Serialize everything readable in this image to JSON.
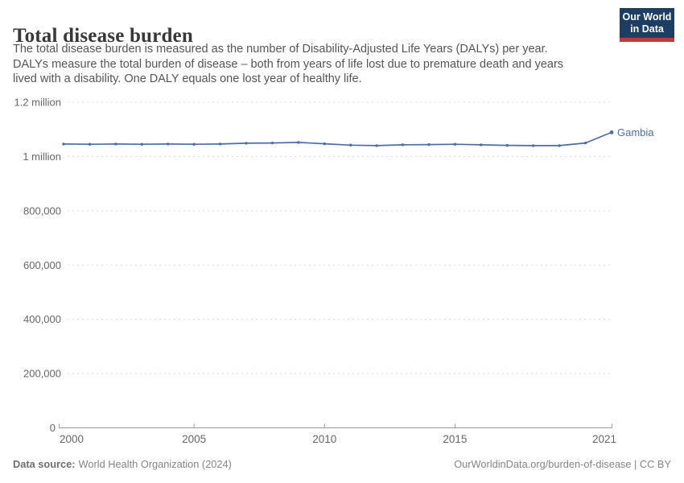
{
  "header": {
    "title": "Total disease burden",
    "subtitle_lines": [
      "The total disease burden is measured as the number of Disability-Adjusted Life Years (DALYs) per year.",
      "DALYs measure the total burden of disease – both from years of life lost due to premature death and years",
      "lived with a disability. One DALY equals one lost year of healthy life."
    ]
  },
  "logo": {
    "line1": "Our World",
    "line2": "in Data",
    "bg_color": "#1d3d63",
    "stripe_color": "#c0393b"
  },
  "chart_data": {
    "type": "line",
    "title": "Total disease burden",
    "entity_label": "Gambia",
    "unit": "DALYs per year",
    "xlim": [
      2000,
      2021
    ],
    "ylim": [
      0,
      1200000
    ],
    "grid": "dashed-horizontal",
    "legend_position": "end-of-line-label",
    "x": [
      2000,
      2001,
      2002,
      2003,
      2004,
      2005,
      2006,
      2007,
      2008,
      2009,
      2010,
      2011,
      2012,
      2013,
      2014,
      2015,
      2016,
      2017,
      2018,
      2019,
      2020,
      2021
    ],
    "series": [
      {
        "name": "Gambia",
        "color": "#4c6da8",
        "values": [
          1046000,
          1045000,
          1046000,
          1045000,
          1046000,
          1045000,
          1046000,
          1049000,
          1050000,
          1052000,
          1047000,
          1042000,
          1040000,
          1043000,
          1044000,
          1045000,
          1043000,
          1041000,
          1040000,
          1040000,
          1050000,
          1089000
        ]
      }
    ],
    "yticks": [
      {
        "value": 1200000,
        "label": "1.2 million"
      },
      {
        "value": 1000000,
        "label": "1 million"
      },
      {
        "value": 800000,
        "label": "800,000"
      },
      {
        "value": 600000,
        "label": "600,000"
      },
      {
        "value": 400000,
        "label": "400,000"
      },
      {
        "value": 200000,
        "label": "200,000"
      },
      {
        "value": 0,
        "label": "0"
      }
    ],
    "xticks": [
      {
        "value": 2000,
        "label": "2000"
      },
      {
        "value": 2005,
        "label": "2005"
      },
      {
        "value": 2010,
        "label": "2010"
      },
      {
        "value": 2015,
        "label": "2015"
      },
      {
        "value": 2021,
        "label": "2021"
      }
    ]
  },
  "footer": {
    "source_label": "Data source:",
    "source_value": "World Health Organization (2024)",
    "link_text": "OurWorldinData.org/burden-of-disease | CC BY"
  }
}
